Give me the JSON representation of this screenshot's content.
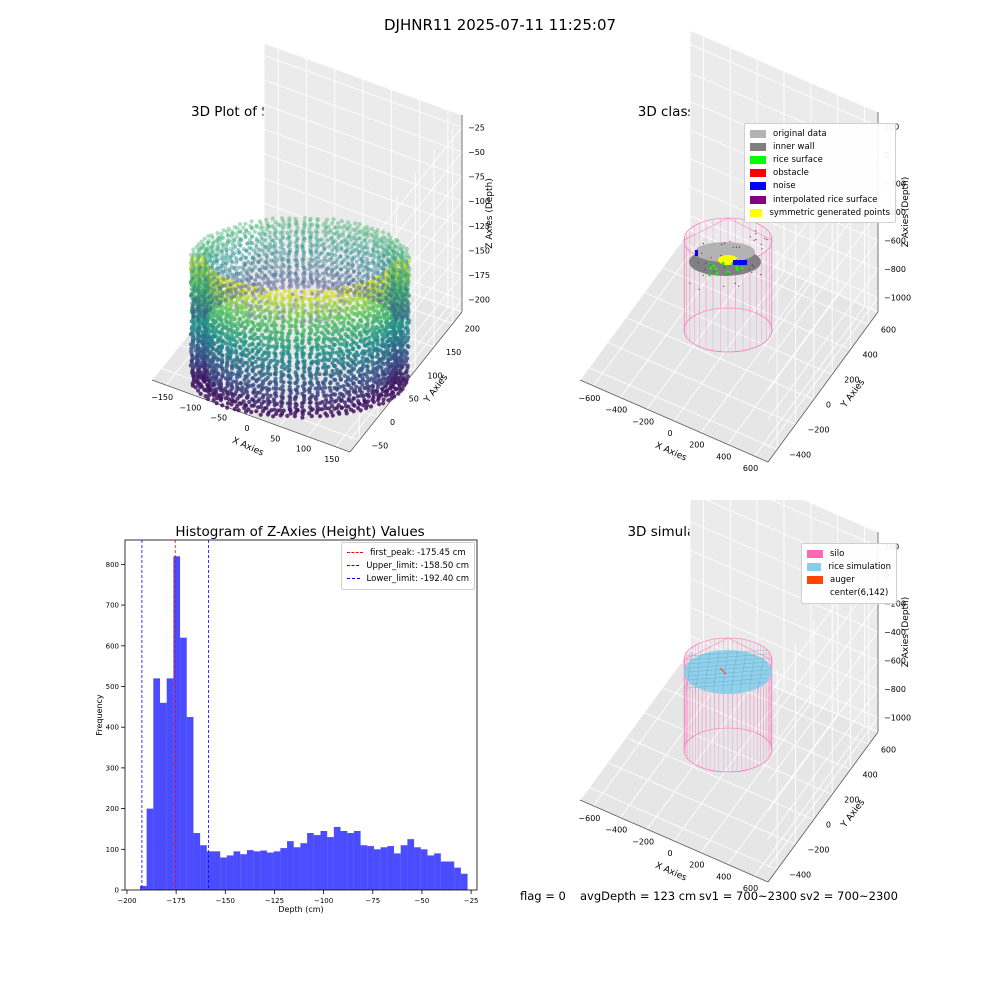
{
  "figure": {
    "suptitle": "DJHNR11 2025-07-11 11:25:07",
    "footer": {
      "flag": "flag = 0",
      "avg_depth": "avgDepth = 123 cm",
      "sv1": "sv1 = 700~2300",
      "sv2": "sv2 = 700~2300"
    }
  },
  "panels": {
    "raw": {
      "title": "3D Plot of Silo Interior(row data)",
      "x_label": "X Axies",
      "y_label": "Y Axies",
      "z_label": "Z Axies (Depth)",
      "x_ticks": [
        "−150",
        "−100",
        "−50",
        "0",
        "50",
        "100",
        "150"
      ],
      "y_ticks": [
        "−50",
        "0",
        "50",
        "100",
        "150",
        "200"
      ],
      "z_ticks": [
        "−25",
        "−50",
        "−75",
        "−100",
        "−125",
        "−150",
        "−175",
        "−200"
      ],
      "colormap": [
        "#440154",
        "#3b528b",
        "#21918c",
        "#5ec962",
        "#fde725"
      ]
    },
    "classify": {
      "title": "3D classify of Silo Interior",
      "x_label": "X Axies",
      "y_label": "Y Axies",
      "z_label": "Z Axies (Depth)",
      "x_ticks": [
        "−600",
        "−400",
        "−200",
        "0",
        "200",
        "400",
        "600"
      ],
      "y_ticks": [
        "−400",
        "−200",
        "0",
        "200",
        "400",
        "600"
      ],
      "z_ticks": [
        "200",
        "0",
        "−200",
        "−400",
        "−600",
        "−800",
        "−1000"
      ],
      "legend": [
        {
          "label": "original data",
          "color": "#b3b3b3"
        },
        {
          "label": "inner wall",
          "color": "#808080"
        },
        {
          "label": "rice surface",
          "color": "#00ff00"
        },
        {
          "label": "obstacle",
          "color": "#ff0000"
        },
        {
          "label": "noise",
          "color": "#0000ff"
        },
        {
          "label": "interpolated rice surface",
          "color": "#800080"
        },
        {
          "label": "symmetric generated points",
          "color": "#ffff00"
        }
      ],
      "silo_color": "#ff69b4"
    },
    "simulation": {
      "title": "3D simulation of Silo Interior",
      "x_label": "X Axies",
      "y_label": "Y Axies",
      "z_label": "Z Axies (Depth)",
      "x_ticks": [
        "−600",
        "−400",
        "−200",
        "0",
        "200",
        "400",
        "600"
      ],
      "y_ticks": [
        "−400",
        "−200",
        "0",
        "200",
        "400",
        "600"
      ],
      "z_ticks": [
        "200",
        "0",
        "−200",
        "−400",
        "−600",
        "−800",
        "−1000"
      ],
      "legend": [
        {
          "label": "silo",
          "color": "#ff69b4"
        },
        {
          "label": "rice simulation",
          "color": "#87ceeb"
        },
        {
          "label": "auger",
          "color": "#ff4500"
        },
        {
          "label": "center(6,142)",
          "color": ""
        }
      ]
    }
  },
  "chart_data": [
    {
      "type": "bar",
      "title": "Histogram of Z-Axies (Height) Values",
      "xlabel": "Depth (cm)",
      "ylabel": "Frequency",
      "xlim": [
        -201,
        -22
      ],
      "ylim": [
        0,
        860
      ],
      "x_ticks": [
        -200,
        -175,
        -150,
        -125,
        -100,
        -75,
        -50,
        -25
      ],
      "y_ticks": [
        0,
        100,
        200,
        300,
        400,
        500,
        600,
        700,
        800
      ],
      "bar_color": "#0000ff",
      "bin_edges": [
        -193.4,
        -190.0,
        -186.6,
        -183.2,
        -179.8,
        -176.4,
        -173.0,
        -169.6,
        -166.2,
        -162.8,
        -159.4,
        -156.0,
        -152.6,
        -149.2,
        -145.8,
        -142.4,
        -139.0,
        -135.6,
        -132.2,
        -128.8,
        -125.4,
        -122.0,
        -118.6,
        -115.2,
        -111.8,
        -108.4,
        -105.0,
        -101.6,
        -98.2,
        -94.8,
        -91.4,
        -88.0,
        -84.6,
        -81.2,
        -77.8,
        -74.4,
        -71.0,
        -67.6,
        -64.2,
        -60.8,
        -57.4,
        -54.0,
        -50.6,
        -47.2,
        -43.8,
        -40.4,
        -37.0,
        -33.6,
        -30.2,
        -26.8,
        -23.4
      ],
      "counts": [
        10,
        200,
        520,
        460,
        520,
        820,
        620,
        425,
        140,
        110,
        95,
        95,
        80,
        85,
        95,
        88,
        98,
        95,
        97,
        92,
        95,
        103,
        120,
        105,
        115,
        140,
        135,
        145,
        130,
        155,
        145,
        140,
        145,
        110,
        108,
        100,
        105,
        108,
        90,
        110,
        125,
        105,
        100,
        85,
        90,
        70,
        70,
        55,
        40,
        0
      ],
      "vlines": [
        {
          "label": "first_peak: -175.45 cm",
          "x": -175.45,
          "color": "#ff0000"
        },
        {
          "label": "Upper_limit: -158.50 cm",
          "x": -158.5,
          "color": "#0000ff"
        },
        {
          "label": "Lower_limit: -192.40 cm",
          "x": -192.4,
          "color": "#0000ff"
        }
      ],
      "legend_position": "upper right"
    }
  ]
}
